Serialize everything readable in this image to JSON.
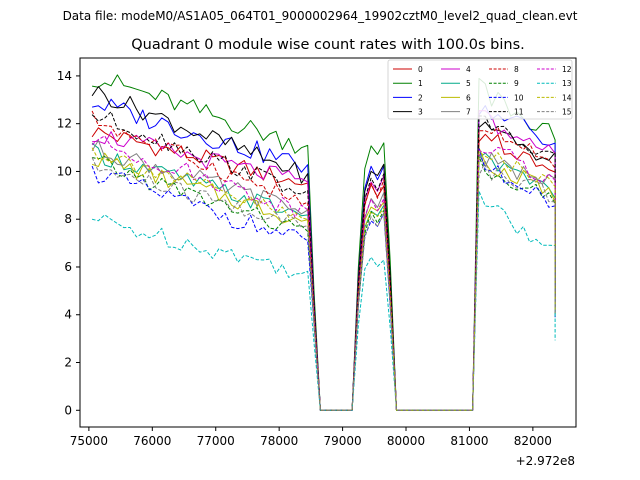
{
  "suptitle": "Data file: modeM0/AS1A05_064T01_9000002964_19902cztM0_level2_quad_clean.evt",
  "chart_data": {
    "type": "line",
    "title": "Quadrant 0 module wise count rates with 100.0s bins.",
    "xlabel": "",
    "ylabel": "",
    "x_offset_label": "+2.972e8",
    "xlim": [
      74860,
      82680
    ],
    "ylim": [
      -0.7,
      14.75
    ],
    "xticks": [
      75000,
      76000,
      77000,
      78000,
      79000,
      80000,
      81000,
      82000
    ],
    "xtick_labels": [
      "75000",
      "76000",
      "77000",
      "78000",
      "79000",
      "80000",
      "81000",
      "82000"
    ],
    "yticks": [
      0,
      2,
      4,
      6,
      8,
      10,
      12,
      14
    ],
    "ytick_labels": [
      "0",
      "2",
      "4",
      "6",
      "8",
      "10",
      "12",
      "14"
    ],
    "legend_position": "top-right",
    "legend_ncol": 4,
    "bin_width_s": 100,
    "segments": [
      {
        "t0": 75050,
        "n": 35
      },
      {
        "t0": 78550,
        "n": 13
      },
      {
        "t0": 79850,
        "n": 13
      },
      {
        "t0": 81150,
        "n": 13
      }
    ],
    "series": [
      {
        "name": "0",
        "color": "#cc0000",
        "dash": "solid",
        "base": 11.7,
        "slope": -0.75,
        "seg2": 9.3,
        "seg4": 11.6,
        "seg4end": 9.8,
        "noise": 0.4
      },
      {
        "name": "1",
        "color": "#008000",
        "dash": "solid",
        "base": 14.0,
        "slope": -1.0,
        "seg2": 11.1,
        "seg4": 13.5,
        "seg4end": 11.5,
        "noise": 0.45
      },
      {
        "name": "2",
        "color": "#0000ff",
        "dash": "solid",
        "base": 12.9,
        "slope": -0.9,
        "seg2": 10.1,
        "seg4": 12.8,
        "seg4end": 11.1,
        "noise": 0.45
      },
      {
        "name": "3",
        "color": "#000000",
        "dash": "solid",
        "base": 13.4,
        "slope": -1.2,
        "seg2": 10.1,
        "seg4": 12.2,
        "seg4end": 10.4,
        "noise": 0.4
      },
      {
        "name": "4",
        "color": "#cc00cc",
        "dash": "solid",
        "base": 11.6,
        "slope": -0.7,
        "seg2": 9.6,
        "seg4": 12.3,
        "seg4end": 10.6,
        "noise": 0.4
      },
      {
        "name": "5",
        "color": "#00aa88",
        "dash": "solid",
        "base": 10.8,
        "slope": -0.9,
        "seg2": 8.4,
        "seg4": 10.6,
        "seg4end": 9.2,
        "noise": 0.4
      },
      {
        "name": "6",
        "color": "#bbbb00",
        "dash": "solid",
        "base": 10.6,
        "slope": -0.9,
        "seg2": 8.6,
        "seg4": 10.6,
        "seg4end": 9.0,
        "noise": 0.4
      },
      {
        "name": "7",
        "color": "#808080",
        "dash": "solid",
        "base": 11.0,
        "slope": -0.9,
        "seg2": 8.9,
        "seg4": 10.7,
        "seg4end": 9.4,
        "noise": 0.4
      },
      {
        "name": "8",
        "color": "#cc0000",
        "dash": "dashed",
        "base": 12.2,
        "slope": -1.2,
        "seg2": 9.4,
        "seg4": 11.9,
        "seg4end": 10.2,
        "noise": 0.4
      },
      {
        "name": "9",
        "color": "#008000",
        "dash": "dashed",
        "base": 10.4,
        "slope": -1.0,
        "seg2": 8.2,
        "seg4": 10.3,
        "seg4end": 8.7,
        "noise": 0.4
      },
      {
        "name": "10",
        "color": "#0000ff",
        "dash": "dashed",
        "base": 10.0,
        "slope": -1.0,
        "seg2": 8.0,
        "seg4": 10.6,
        "seg4end": 8.5,
        "noise": 0.4
      },
      {
        "name": "11",
        "color": "#000000",
        "dash": "dashed",
        "base": 12.4,
        "slope": -1.1,
        "seg2": 9.6,
        "seg4": 12.1,
        "seg4end": 10.6,
        "noise": 0.4
      },
      {
        "name": "12",
        "color": "#cc00cc",
        "dash": "dashed",
        "base": 11.3,
        "slope": -1.0,
        "seg2": 8.8,
        "seg4": 11.2,
        "seg4end": 9.6,
        "noise": 0.4
      },
      {
        "name": "13",
        "color": "#00bbbb",
        "dash": "dashed",
        "base": 8.0,
        "slope": -0.75,
        "seg2": 6.3,
        "seg4": 8.8,
        "seg4end": 6.5,
        "noise": 0.4
      },
      {
        "name": "14",
        "color": "#bbbb00",
        "dash": "dashed",
        "base": 10.9,
        "slope": -1.0,
        "seg2": 8.4,
        "seg4": 10.9,
        "seg4end": 9.3,
        "noise": 0.4
      },
      {
        "name": "15",
        "color": "#808080",
        "dash": "dashed",
        "base": 10.2,
        "slope": -0.85,
        "seg2": 8.0,
        "seg4": 10.2,
        "seg4end": 8.9,
        "noise": 0.4
      }
    ]
  }
}
